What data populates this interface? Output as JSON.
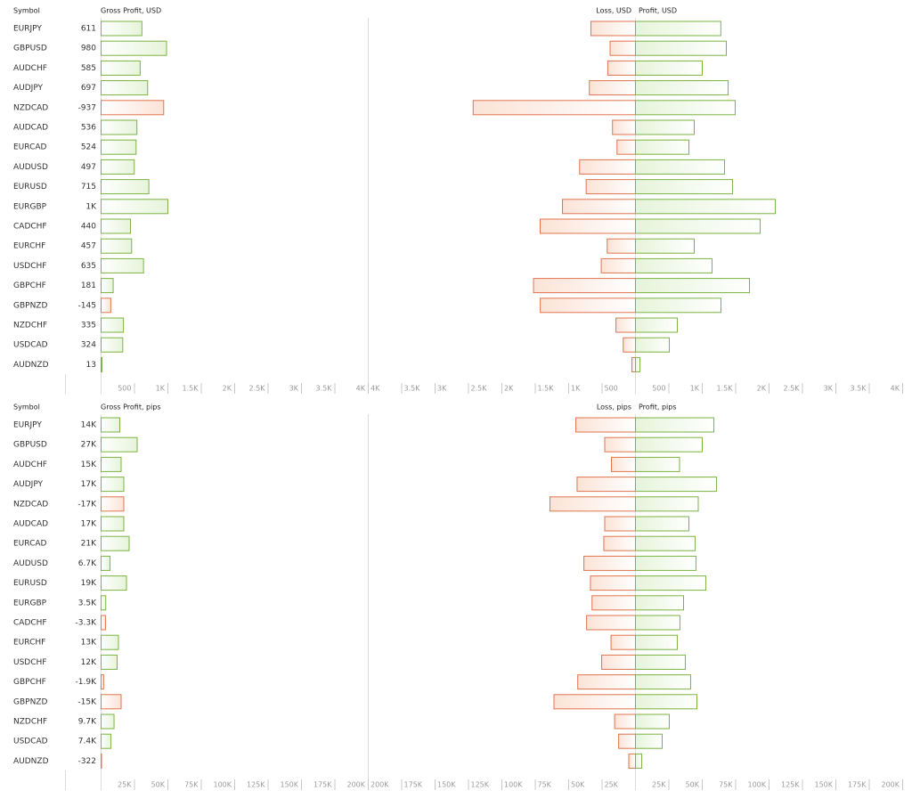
{
  "chart_data": [
    {
      "type": "bar",
      "row_header": "Symbol",
      "categories": [
        "EURJPY",
        "GBPUSD",
        "AUDCHF",
        "AUDJPY",
        "NZDCAD",
        "AUDCAD",
        "EURCAD",
        "AUDUSD",
        "EURUSD",
        "EURGBP",
        "CADCHF",
        "EURCHF",
        "USDCHF",
        "GBPCHF",
        "GBPNZD",
        "NZDCHF",
        "USDCAD",
        "AUDNZD"
      ],
      "series": [
        {
          "name": "Gross Profit, USD",
          "color": "#7cb342",
          "negative_color": "#e0744f",
          "values": [
            611,
            980,
            585,
            697,
            -937,
            536,
            524,
            497,
            715,
            1000,
            440,
            457,
            635,
            181,
            -145,
            335,
            324,
            13
          ],
          "value_labels": [
            "611",
            "980",
            "585",
            "697",
            "-937",
            "536",
            "524",
            "497",
            "715",
            "1K",
            "440",
            "457",
            "635",
            "181",
            "-145",
            "335",
            "324",
            "13"
          ]
        },
        {
          "name": "Loss, USD",
          "color": "#e0744f",
          "values": [
            667,
            380,
            415,
            690,
            2430,
            344,
            276,
            836,
            738,
            1093,
            1427,
            423,
            512,
            1526,
            1425,
            292,
            183,
            54
          ]
        },
        {
          "name": "Profit, USD",
          "color": "#7cb342",
          "values": [
            1278,
            1360,
            1000,
            1387,
            1493,
            880,
            800,
            1333,
            1453,
            2093,
            1867,
            880,
            1147,
            1707,
            1280,
            627,
            507,
            67
          ]
        }
      ],
      "xlim": [
        0,
        4000
      ],
      "xticks": [
        500,
        {
          "value": 1000,
          "label": "1K"
        },
        {
          "value": 1500,
          "label": "1.5K"
        },
        {
          "value": 2000,
          "label": "2K"
        },
        {
          "value": 2500,
          "label": "2.5K"
        },
        {
          "value": 3000,
          "label": "3K"
        },
        {
          "value": 3500,
          "label": "3.5K"
        },
        {
          "value": 4000,
          "label": "4K"
        }
      ]
    },
    {
      "type": "bar",
      "row_header": "Symbol",
      "categories": [
        "EURJPY",
        "GBPUSD",
        "AUDCHF",
        "AUDJPY",
        "NZDCAD",
        "AUDCAD",
        "EURCAD",
        "AUDUSD",
        "EURUSD",
        "EURGBP",
        "CADCHF",
        "EURCHF",
        "USDCHF",
        "GBPCHF",
        "GBPNZD",
        "NZDCHF",
        "USDCAD",
        "AUDNZD"
      ],
      "series": [
        {
          "name": "Gross Profit, pips",
          "color": "#7cb342",
          "negative_color": "#e0744f",
          "values": [
            14000,
            27000,
            15000,
            17000,
            -17000,
            17000,
            21000,
            6700,
            19000,
            3500,
            -3300,
            13000,
            12000,
            -1900,
            -15000,
            9700,
            7400,
            -322
          ],
          "value_labels": [
            "14K",
            "27K",
            "15K",
            "17K",
            "-17K",
            "17K",
            "21K",
            "6.7K",
            "19K",
            "3.5K",
            "-3.3K",
            "13K",
            "12K",
            "-1.9K",
            "-15K",
            "9.7K",
            "7.4K",
            "-322"
          ]
        },
        {
          "name": "Loss, pips",
          "color": "#e0744f",
          "values": [
            44700,
            23000,
            18000,
            43700,
            64000,
            23000,
            23700,
            38600,
            33700,
            32500,
            36600,
            18300,
            25300,
            43200,
            61000,
            15600,
            12600,
            5000
          ]
        },
        {
          "name": "Profit, pips",
          "color": "#7cb342",
          "values": [
            58700,
            50000,
            33000,
            60700,
            47000,
            40000,
            44700,
            45300,
            52700,
            36000,
            33300,
            31300,
            37300,
            41300,
            46000,
            25300,
            20000,
            4700
          ]
        }
      ],
      "xlim": [
        0,
        200000
      ],
      "xticks": [
        {
          "value": 25000,
          "label": "25K"
        },
        {
          "value": 50000,
          "label": "50K"
        },
        {
          "value": 75000,
          "label": "75K"
        },
        {
          "value": 100000,
          "label": "100K"
        },
        {
          "value": 125000,
          "label": "125K"
        },
        {
          "value": 150000,
          "label": "150K"
        },
        {
          "value": 175000,
          "label": "175K"
        },
        {
          "value": 200000,
          "label": "200K"
        }
      ]
    }
  ]
}
